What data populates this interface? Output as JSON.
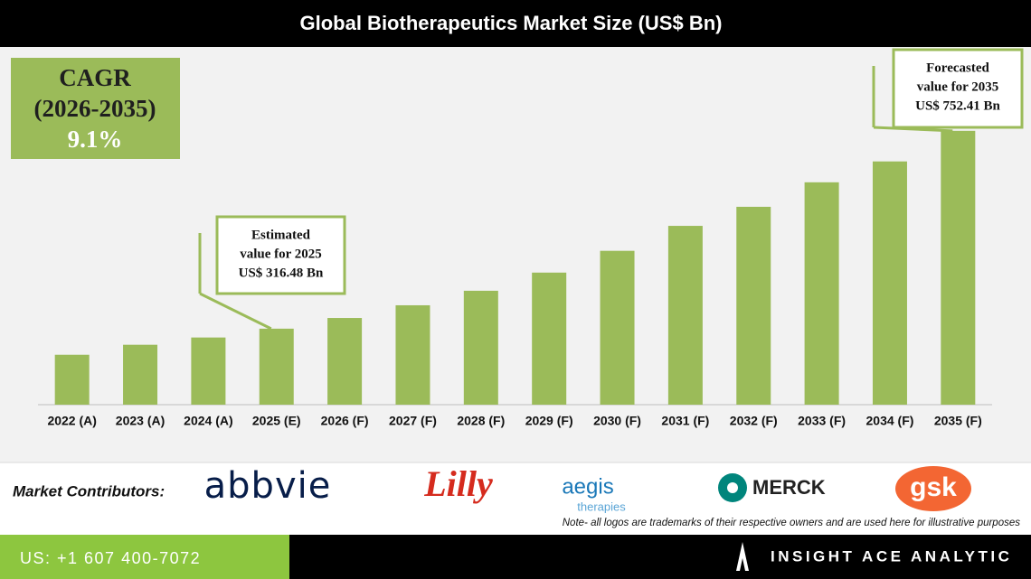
{
  "chart_data": {
    "type": "bar",
    "title": "Global Biotherapeutics Market Size (US$ Bn)",
    "categories": [
      "2022 (A)",
      "2023 (A)",
      "2024 (A)",
      "2025 (E)",
      "2026 (F)",
      "2027 (F)",
      "2028 (F)",
      "2029 (F)",
      "2030 (F)",
      "2031 (F)",
      "2032 (F)",
      "2033 (F)",
      "2034 (F)",
      "2035 (F)"
    ],
    "values": [
      259,
      281,
      297,
      316.48,
      340,
      368,
      400,
      440,
      488,
      543,
      585,
      639,
      685,
      752.41
    ],
    "color": "#9bbb59",
    "ylim": [
      149,
      770
    ],
    "cagr": {
      "label": "CAGR",
      "period": "(2026-2035)",
      "value": "9.1%"
    },
    "annotations": [
      {
        "lines": [
          "Estimated",
          "value for 2025",
          "US$ 316.48 Bn"
        ]
      },
      {
        "lines": [
          "Forecasted",
          "value for 2035",
          "US$ 752.41 Bn"
        ]
      }
    ]
  },
  "contributors": {
    "label": "Market Contributors:",
    "logos": [
      "abbvie",
      "Lilly",
      "aegis",
      "therapies",
      "MERCK",
      "gsk"
    ]
  },
  "note": "Note- all logos are trademarks of their respective owners and are used here for illustrative purposes",
  "footer": {
    "phone": "US: +1 607 400-7072",
    "brand": "INSIGHT ACE ANALYTIC"
  }
}
